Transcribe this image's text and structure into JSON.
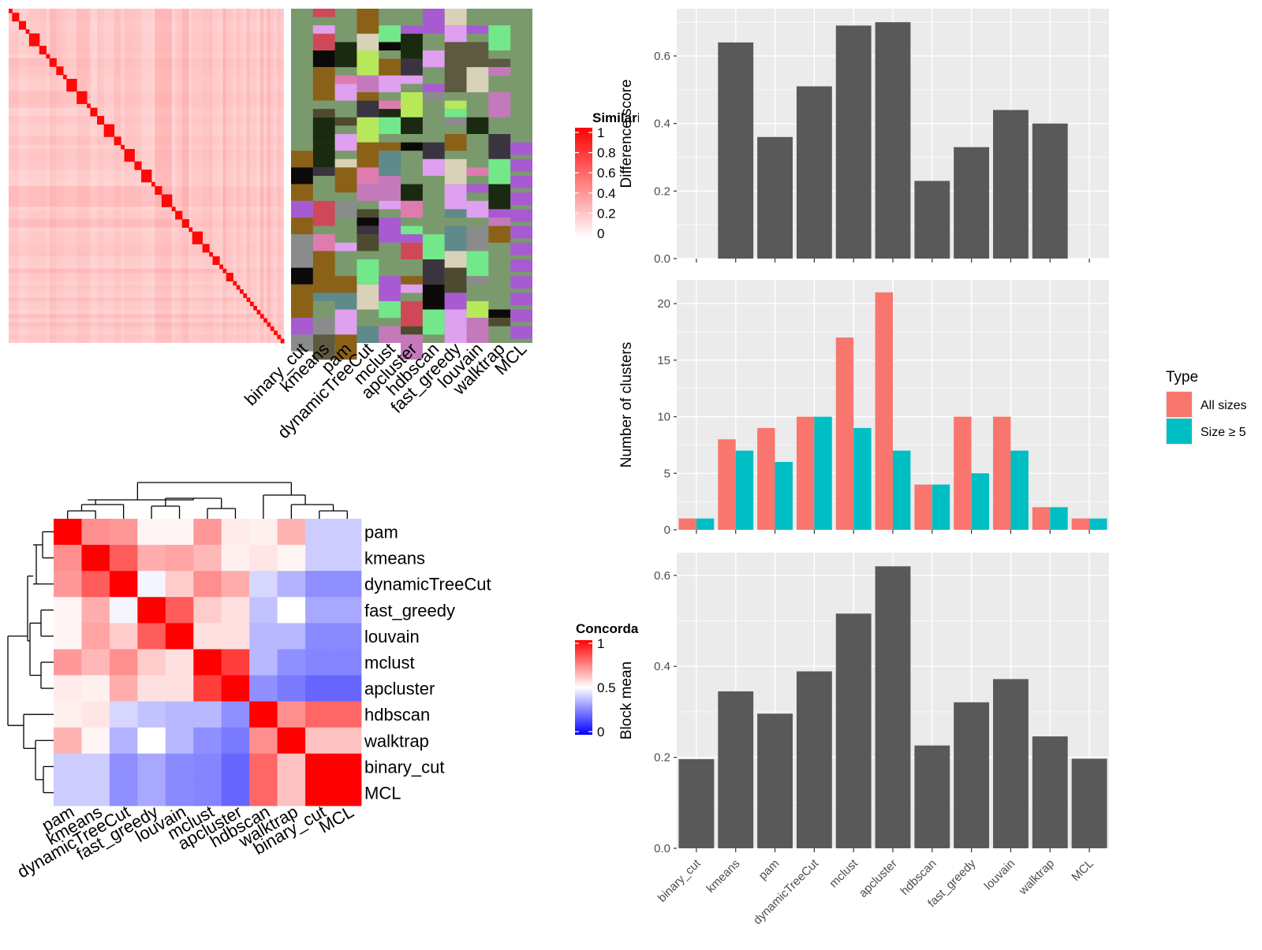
{
  "methods_order": [
    "binary_cut",
    "kmeans",
    "pam",
    "dynamicTreeCut",
    "mclust",
    "apcluster",
    "hdbscan",
    "fast_greedy",
    "louvain",
    "walktrap",
    "MCL"
  ],
  "similarity_legend": {
    "title": "Similarity",
    "ticks": [
      "1",
      "0.8",
      "0.6",
      "0.4",
      "0.2",
      "0"
    ]
  },
  "concordance_legend": {
    "title": "Concordance",
    "ticks": [
      "1",
      "0.5",
      "0"
    ]
  },
  "type_legend": {
    "title": "Type",
    "items": [
      "All sizes",
      "Size ≥ 5"
    ]
  },
  "colors": {
    "bar_dark": "#595959",
    "all_sizes": "#F8766D",
    "size5": "#00BFC4",
    "panel_bg": "#EBEBEB",
    "heat_red": "#FF0000",
    "heat_blue": "#0000FF",
    "cluster_bg": "#7A9A6E"
  },
  "chart_data": [
    {
      "type": "heatmap",
      "title": "",
      "description_label": "Similarity",
      "columns": [
        "binary_cut",
        "kmeans",
        "pam",
        "dynamicTreeCut",
        "mclust",
        "apcluster",
        "hdbscan",
        "fast_greedy",
        "louvain",
        "walktrap",
        "MCL"
      ],
      "scale": [
        0,
        1
      ]
    },
    {
      "type": "heatmap",
      "title": "",
      "legend_title": "Concordance",
      "rows": [
        "pam",
        "kmeans",
        "dynamicTreeCut",
        "fast_greedy",
        "louvain",
        "mclust",
        "apcluster",
        "hdbscan",
        "walktrap",
        "binary_cut",
        "MCL"
      ],
      "cols": [
        "pam",
        "kmeans",
        "dynamicTreeCut",
        "fast_greedy",
        "louvain",
        "mclust",
        "apcluster",
        "hdbscan",
        "walktrap",
        "binary_cut",
        "MCL"
      ],
      "values": [
        [
          1.0,
          0.72,
          0.7,
          0.52,
          0.52,
          0.7,
          0.54,
          0.53,
          0.65,
          0.4,
          0.4
        ],
        [
          0.72,
          1.0,
          0.82,
          0.66,
          0.68,
          0.64,
          0.53,
          0.55,
          0.52,
          0.4,
          0.4
        ],
        [
          0.7,
          0.82,
          1.0,
          0.48,
          0.6,
          0.72,
          0.66,
          0.42,
          0.35,
          0.28,
          0.28
        ],
        [
          0.52,
          0.66,
          0.48,
          1.0,
          0.82,
          0.6,
          0.56,
          0.38,
          0.5,
          0.33,
          0.33
        ],
        [
          0.52,
          0.68,
          0.6,
          0.82,
          1.0,
          0.56,
          0.56,
          0.36,
          0.36,
          0.27,
          0.27
        ],
        [
          0.7,
          0.64,
          0.72,
          0.6,
          0.56,
          1.0,
          0.88,
          0.36,
          0.28,
          0.26,
          0.26
        ],
        [
          0.54,
          0.53,
          0.66,
          0.56,
          0.56,
          0.88,
          1.0,
          0.28,
          0.24,
          0.2,
          0.2
        ],
        [
          0.53,
          0.55,
          0.42,
          0.38,
          0.36,
          0.36,
          0.28,
          1.0,
          0.72,
          0.8,
          0.8
        ],
        [
          0.65,
          0.52,
          0.35,
          0.5,
          0.36,
          0.28,
          0.24,
          0.72,
          1.0,
          0.62,
          0.62
        ],
        [
          0.4,
          0.4,
          0.28,
          0.33,
          0.27,
          0.26,
          0.2,
          0.8,
          0.62,
          1.0,
          1.0
        ],
        [
          0.4,
          0.4,
          0.28,
          0.33,
          0.27,
          0.26,
          0.2,
          0.8,
          0.62,
          1.0,
          1.0
        ]
      ],
      "scale": [
        0,
        1
      ]
    },
    {
      "type": "bar",
      "categories": [
        "binary_cut",
        "kmeans",
        "pam",
        "dynamicTreeCut",
        "mclust",
        "apcluster",
        "hdbscan",
        "fast_greedy",
        "louvain",
        "walktrap",
        "MCL"
      ],
      "values": [
        0,
        0.64,
        0.36,
        0.51,
        0.69,
        0.7,
        0.23,
        0.33,
        0.44,
        0.4,
        0
      ],
      "xlabel": "",
      "ylabel": "Difference score",
      "ylim": [
        0,
        0.74
      ],
      "yticks": [
        "0.0",
        "0.2",
        "0.4",
        "0.6"
      ]
    },
    {
      "type": "bar",
      "categories": [
        "binary_cut",
        "kmeans",
        "pam",
        "dynamicTreeCut",
        "mclust",
        "apcluster",
        "hdbscan",
        "fast_greedy",
        "louvain",
        "walktrap",
        "MCL"
      ],
      "series": [
        {
          "name": "All sizes",
          "values": [
            1,
            8,
            9,
            10,
            17,
            21,
            4,
            10,
            10,
            2,
            1
          ]
        },
        {
          "name": "Size ≥ 5",
          "values": [
            1,
            7,
            6,
            10,
            9,
            7,
            4,
            5,
            7,
            2,
            1
          ]
        }
      ],
      "xlabel": "",
      "ylabel": "Number of clusters",
      "ylim": [
        0,
        22.1
      ],
      "yticks": [
        "0",
        "5",
        "10",
        "15",
        "20"
      ]
    },
    {
      "type": "bar",
      "categories": [
        "binary_cut",
        "kmeans",
        "pam",
        "dynamicTreeCut",
        "mclust",
        "apcluster",
        "hdbscan",
        "fast_greedy",
        "louvain",
        "walktrap",
        "MCL"
      ],
      "values": [
        0.196,
        0.345,
        0.296,
        0.389,
        0.516,
        0.62,
        0.226,
        0.321,
        0.372,
        0.246,
        0.197
      ],
      "xlabel": "",
      "ylabel": "Block mean",
      "ylim": [
        0,
        0.65
      ],
      "yticks": [
        "0.0",
        "0.2",
        "0.4",
        "0.6"
      ]
    }
  ]
}
